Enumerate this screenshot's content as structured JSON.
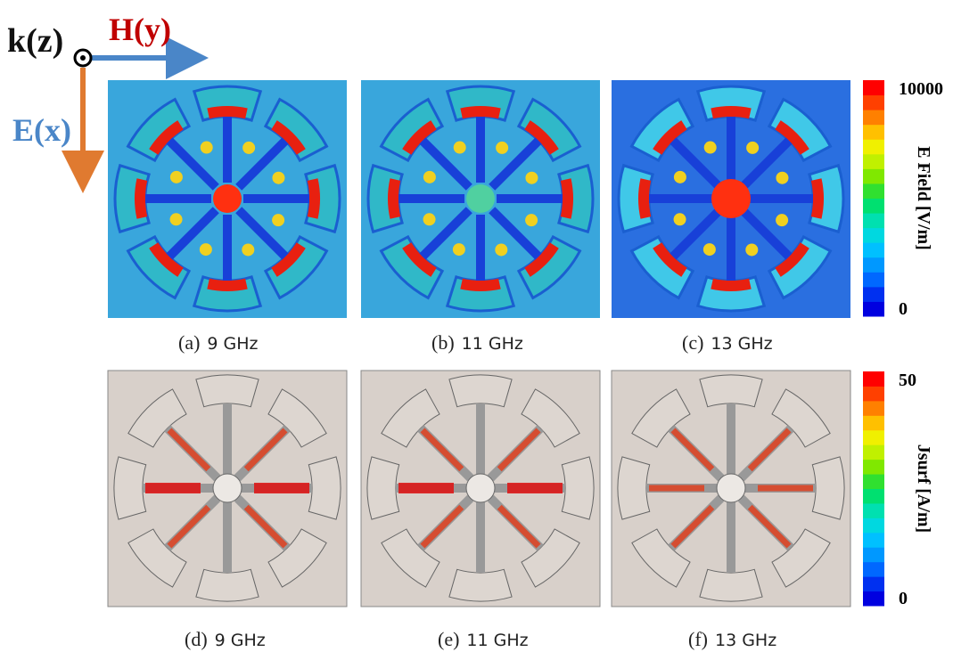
{
  "axes": {
    "k": "k(z)",
    "h": "H(y)",
    "e": "E(x)"
  },
  "efield_panels": [
    {
      "label": "(a)",
      "freq": "9 GHz"
    },
    {
      "label": "(b)",
      "freq": "11 GHz"
    },
    {
      "label": "(c)",
      "freq": "13 GHz"
    }
  ],
  "current_panels": [
    {
      "label": "(d)",
      "freq": "9 GHz"
    },
    {
      "label": "(e)",
      "freq": "11 GHz"
    },
    {
      "label": "(f)",
      "freq": "13 GHz"
    }
  ],
  "efield_colorbar": {
    "title": "E Field [V/m]",
    "max": 10000,
    "min": 0
  },
  "current_colorbar": {
    "title": "Jsurf [A/m]",
    "max": 50,
    "min": 0
  }
}
